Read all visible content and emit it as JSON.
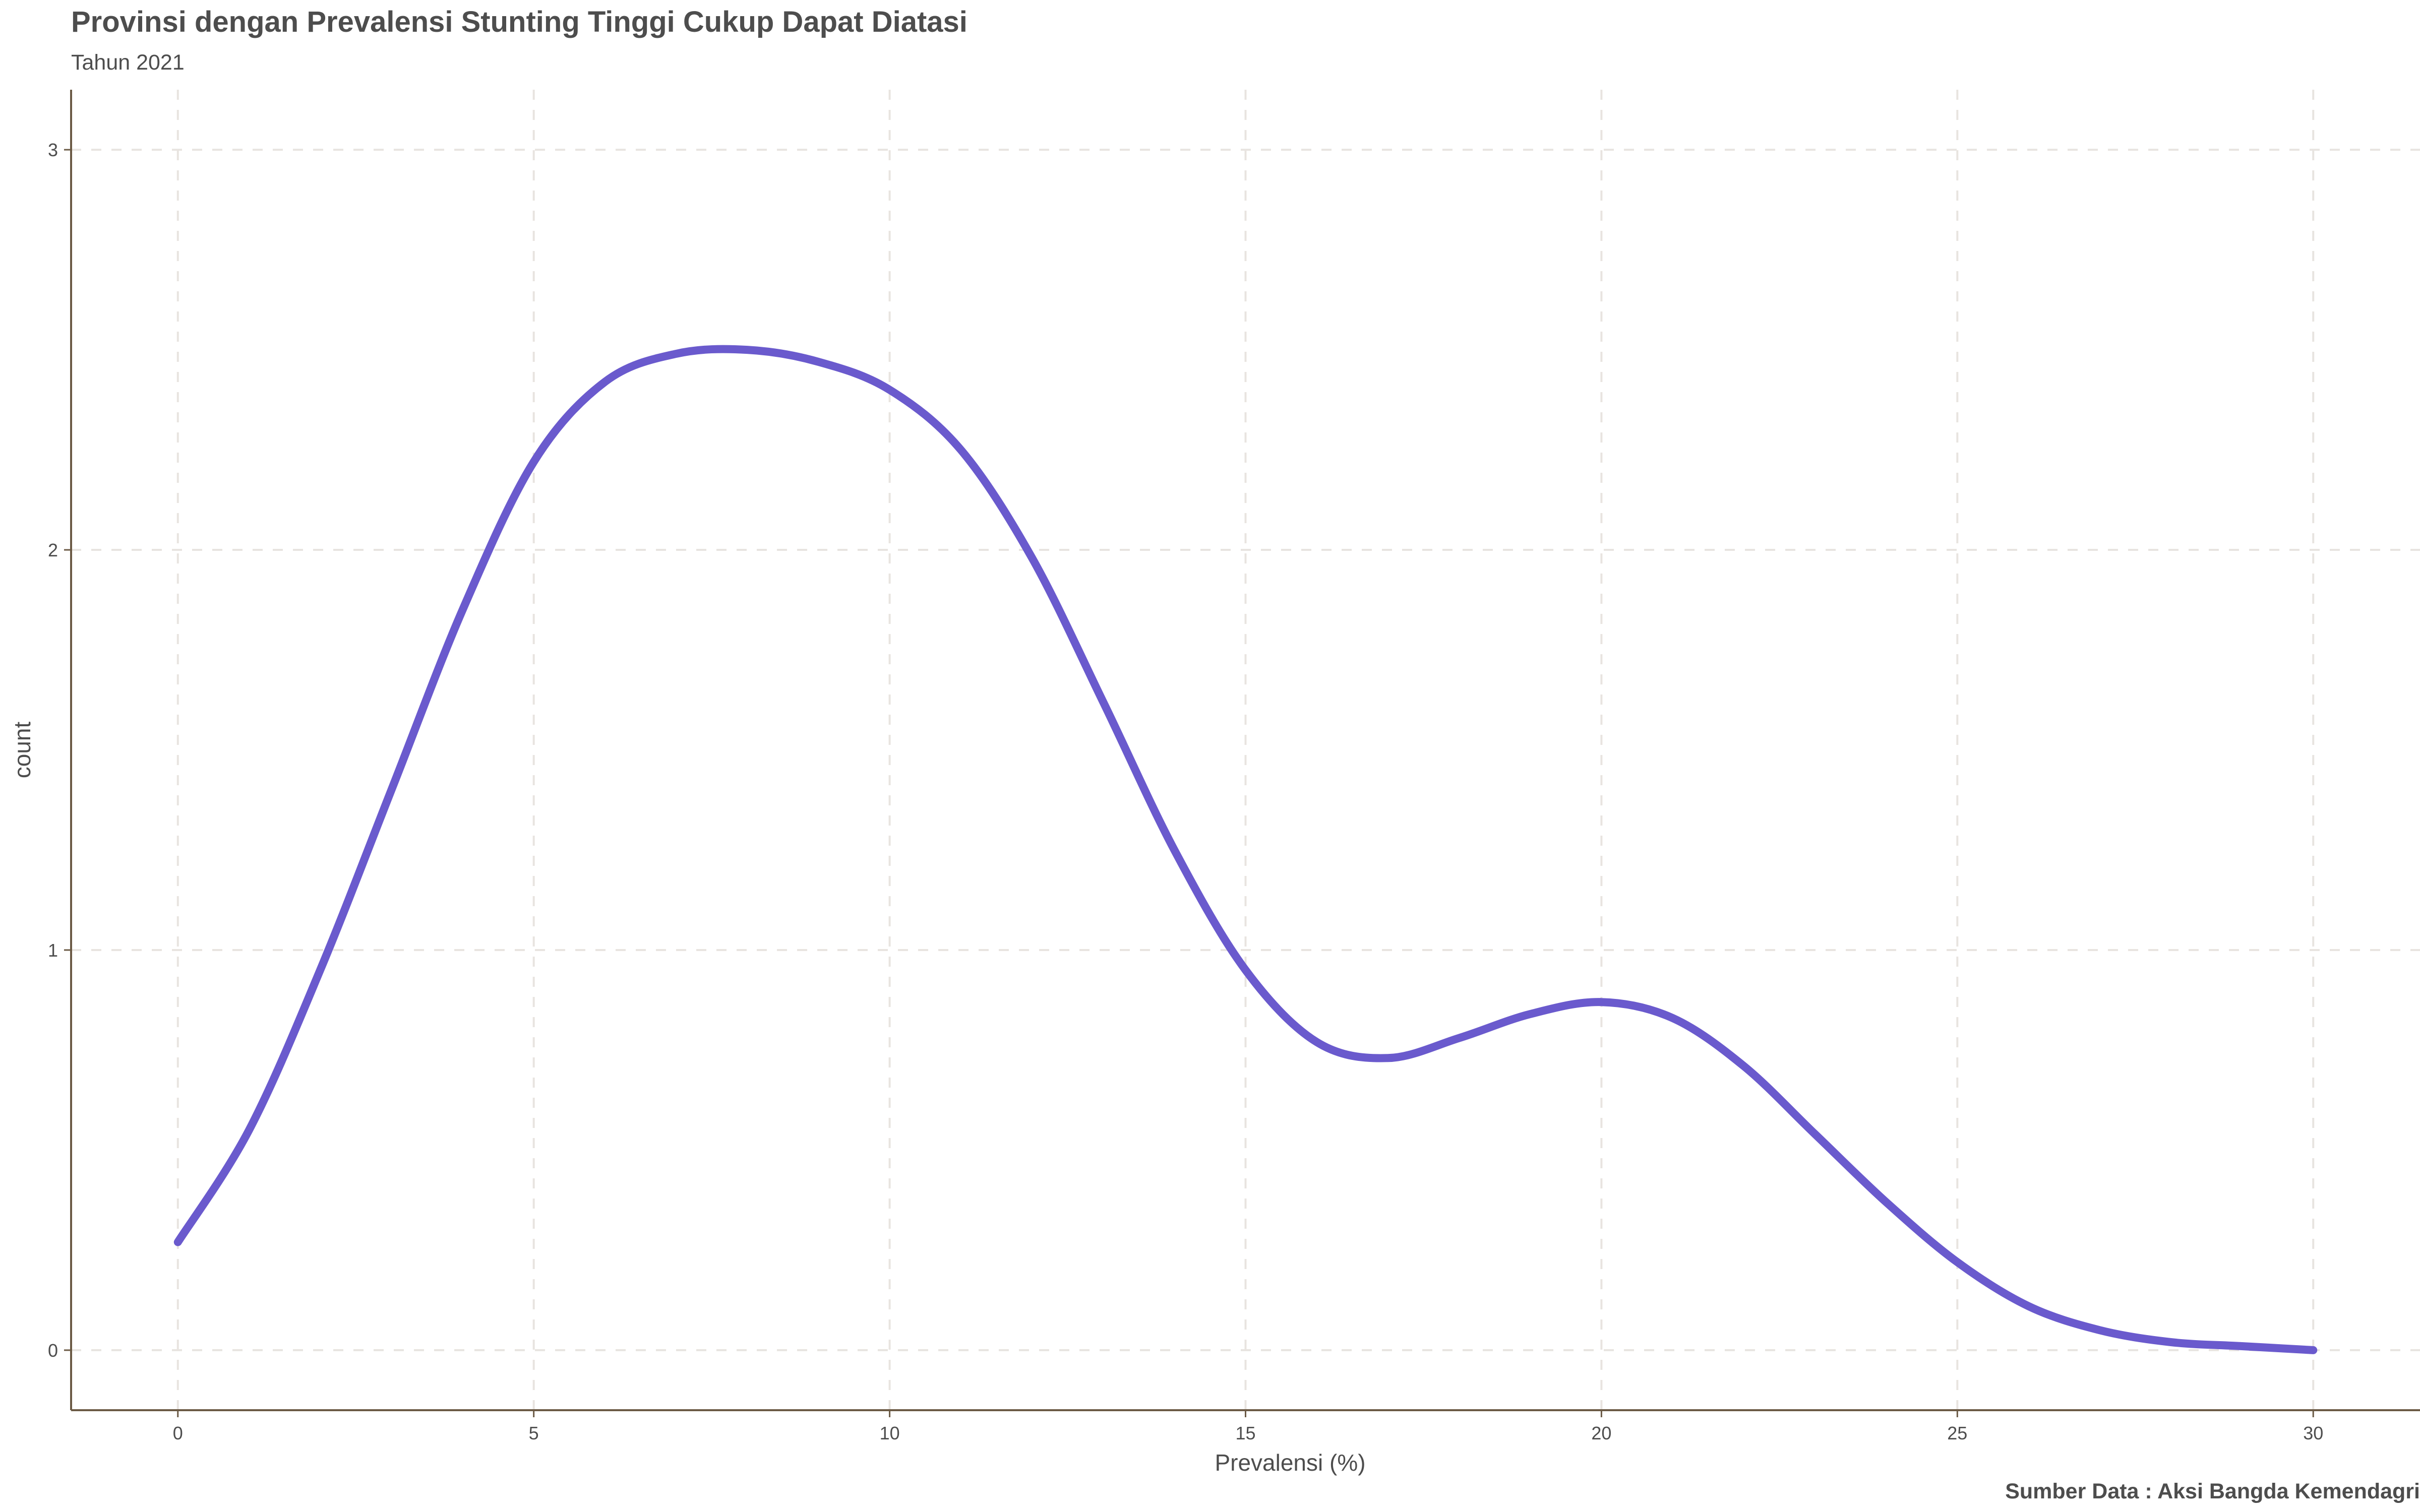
{
  "chart_data": {
    "type": "line",
    "title": "Provinsi dengan Prevalensi Stunting Tinggi Cukup Dapat Diatasi",
    "subtitle": "Tahun 2021",
    "caption": "Sumber Data : Aksi Bangda Kemendagri",
    "xlabel": "Prevalensi (%)",
    "ylabel": "count",
    "xlim": [
      -1.5,
      31.5
    ],
    "ylim": [
      -0.15,
      3.15
    ],
    "xticks": [
      0,
      5,
      10,
      15,
      20,
      25,
      30
    ],
    "yticks": [
      0,
      1,
      2,
      3
    ],
    "grid": true,
    "grid_style": "dashed",
    "legend": "none",
    "colors": {
      "line": "#6a5acd",
      "grid": "#e8e4e0",
      "axis": "#6b5a45",
      "text": "#4d4d4d"
    },
    "series": [
      {
        "x": [
          0,
          1,
          2,
          3,
          4,
          5,
          6,
          7,
          8,
          9,
          10,
          11,
          12,
          13,
          14,
          15,
          16,
          17,
          18,
          19,
          20,
          21,
          22,
          23,
          24,
          25,
          26,
          27,
          28,
          29,
          30
        ],
        "values": [
          0.27,
          0.55,
          0.95,
          1.4,
          1.85,
          2.22,
          2.42,
          2.49,
          2.5,
          2.47,
          2.4,
          2.25,
          1.98,
          1.62,
          1.25,
          0.95,
          0.77,
          0.73,
          0.78,
          0.84,
          0.87,
          0.83,
          0.71,
          0.54,
          0.37,
          0.22,
          0.11,
          0.05,
          0.02,
          0.01,
          0.0
        ]
      }
    ]
  }
}
